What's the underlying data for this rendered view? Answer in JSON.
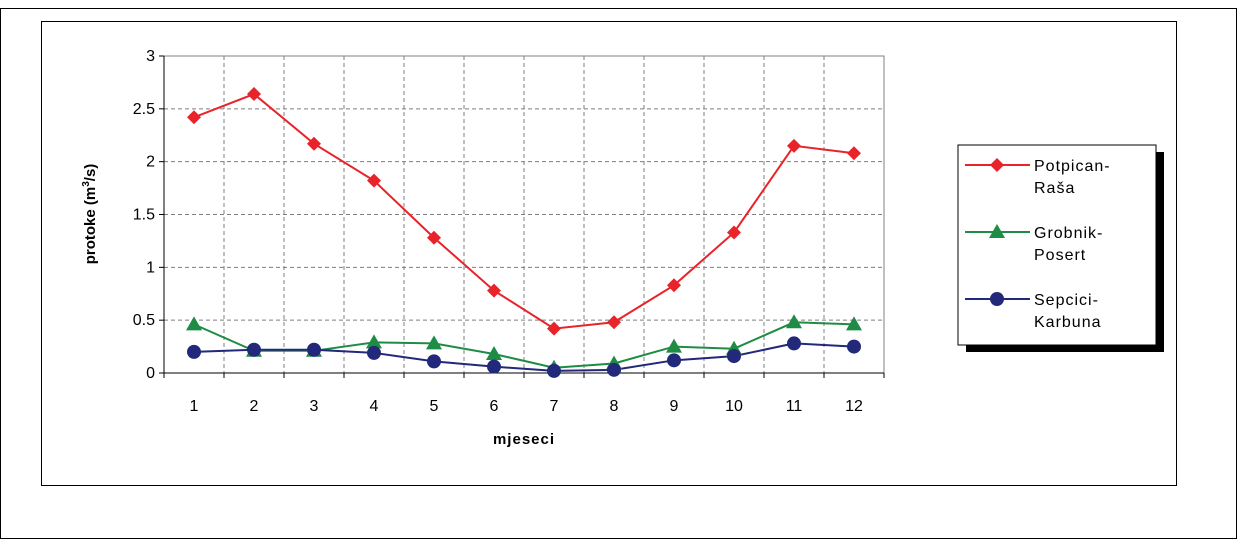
{
  "chart_data": {
    "type": "line",
    "x": [
      1,
      2,
      3,
      4,
      5,
      6,
      7,
      8,
      9,
      10,
      11,
      12
    ],
    "xlabel": "mjeseci",
    "ylabel_main": "protoke (m",
    "ylabel_sup": "3",
    "ylabel_tail": "/s)",
    "ylim": [
      0,
      3
    ],
    "yticks": [
      "0",
      "0.5",
      "1",
      "1.5",
      "2",
      "2.5",
      "3"
    ],
    "xticks": [
      "1",
      "2",
      "3",
      "4",
      "5",
      "6",
      "7",
      "8",
      "9",
      "10",
      "11",
      "12"
    ],
    "grid": true,
    "legend_position": "right",
    "series": [
      {
        "name_line1": "Potpican-",
        "name_line2": "Raša",
        "color": "#e8232a",
        "marker": "diamond",
        "values": [
          2.42,
          2.64,
          2.17,
          1.82,
          1.28,
          0.78,
          0.42,
          0.48,
          0.83,
          1.33,
          2.15,
          2.08
        ]
      },
      {
        "name_line1": "Grobnik-",
        "name_line2": "Posert",
        "color": "#1f8c45",
        "marker": "triangle",
        "values": [
          0.46,
          0.21,
          0.21,
          0.29,
          0.28,
          0.18,
          0.05,
          0.09,
          0.25,
          0.23,
          0.48,
          0.46
        ]
      },
      {
        "name_line1": "Sepcici-",
        "name_line2": "Karbuna",
        "color": "#22287a",
        "marker": "circle",
        "values": [
          0.2,
          0.22,
          0.22,
          0.19,
          0.11,
          0.06,
          0.02,
          0.03,
          0.12,
          0.16,
          0.28,
          0.25
        ]
      }
    ]
  }
}
